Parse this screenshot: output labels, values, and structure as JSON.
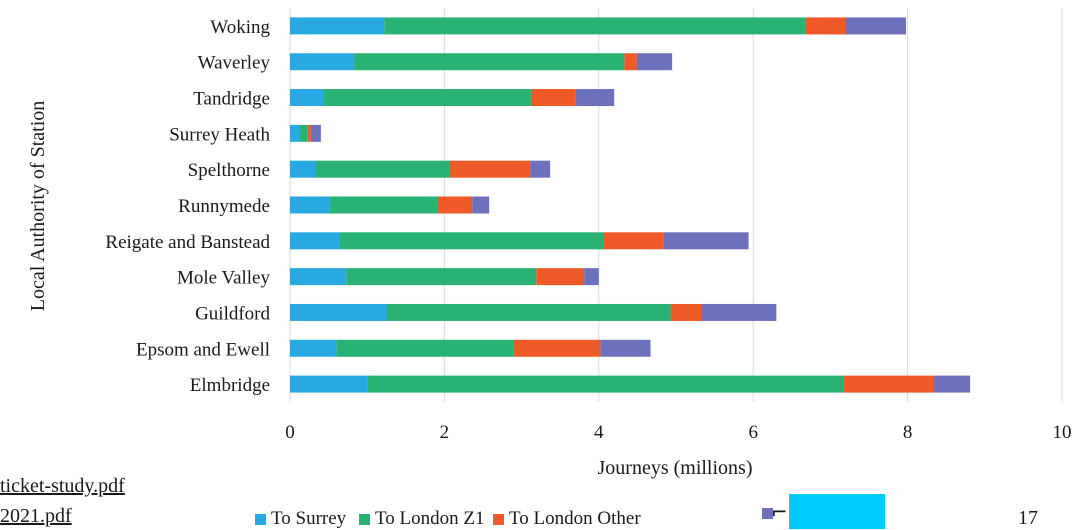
{
  "chart_data": {
    "type": "bar",
    "orientation": "horizontal",
    "stacked": true,
    "title": "",
    "xlabel": "Journeys (millions)",
    "ylabel": "Local Authority of Station",
    "xlim": [
      0,
      10
    ],
    "xticks": [
      0,
      2,
      4,
      6,
      8,
      10
    ],
    "grid": true,
    "legend_position": "bottom",
    "categories": [
      "Woking",
      "Waverley",
      "Tandridge",
      "Surrey Heath",
      "Spelthorne",
      "Runnymede",
      "Reigate and Banstead",
      "Mole Valley",
      "Guildford",
      "Epsom and Ewell",
      "Elmbridge"
    ],
    "series": [
      {
        "name": "To Surrey",
        "color": "#29a9e1",
        "values": [
          1.22,
          0.83,
          0.44,
          0.13,
          0.33,
          0.51,
          0.64,
          0.73,
          1.25,
          0.6,
          1.0
        ]
      },
      {
        "name": "To London Z1",
        "color": "#29b274",
        "values": [
          5.45,
          3.5,
          2.68,
          0.1,
          1.73,
          1.4,
          3.42,
          2.46,
          3.68,
          2.3,
          6.17
        ]
      },
      {
        "name": "To London Other",
        "color": "#f05a28",
        "values": [
          0.52,
          0.16,
          0.58,
          0.04,
          1.05,
          0.45,
          0.78,
          0.62,
          0.4,
          1.12,
          1.16
        ]
      },
      {
        "name": "",
        "color": "#6d71bb",
        "values": [
          0.79,
          0.46,
          0.5,
          0.13,
          0.26,
          0.22,
          1.1,
          0.19,
          0.97,
          0.65,
          0.48
        ]
      }
    ]
  },
  "footer": {
    "link1": "ticket-study.pdf",
    "link2": "2021.pdf",
    "page_number": "17"
  }
}
